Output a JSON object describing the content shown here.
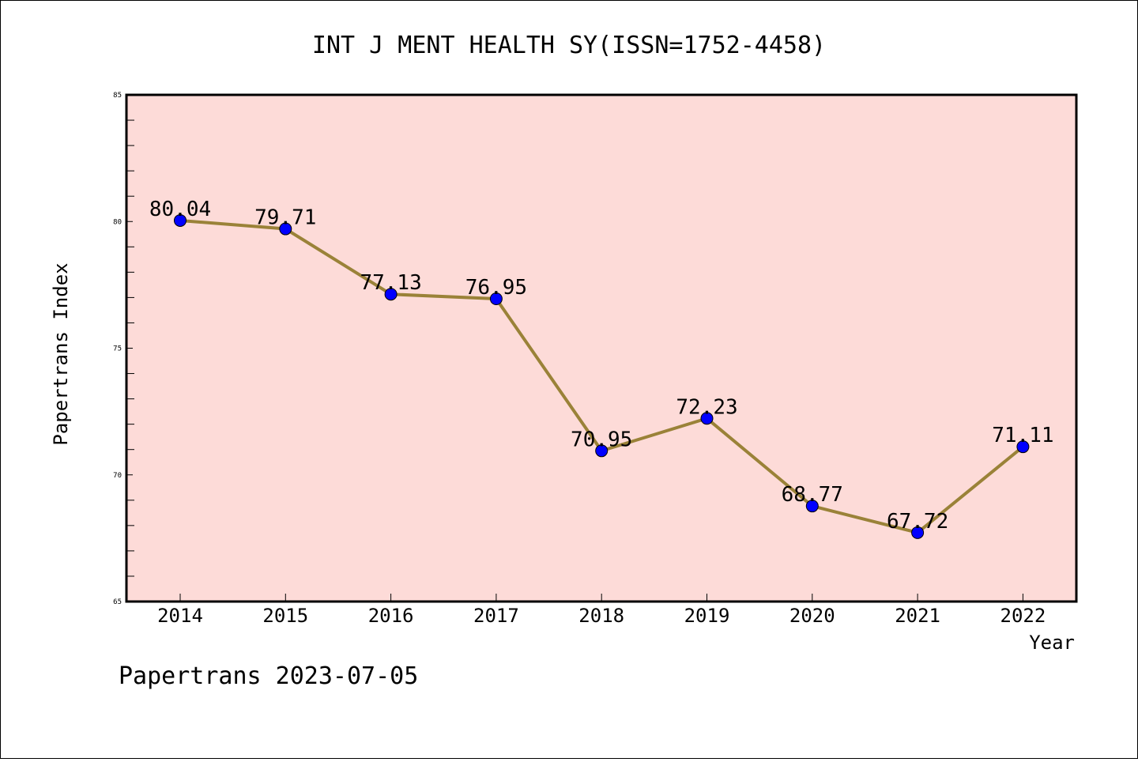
{
  "chart_data": {
    "type": "line",
    "title": "INT J MENT HEALTH SY(ISSN=1752-4458)",
    "xlabel": "Year",
    "ylabel": "Papertrans Index",
    "categories": [
      "2014",
      "2015",
      "2016",
      "2017",
      "2018",
      "2019",
      "2020",
      "2021",
      "2022"
    ],
    "series": [
      {
        "values": [
          80.04,
          79.71,
          77.13,
          76.95,
          70.95,
          72.23,
          68.77,
          67.72,
          71.11
        ],
        "labels": [
          "80.04",
          "79.71",
          "77.13",
          "76.95",
          "70.95",
          "72.23",
          "68.77",
          "67.72",
          "71.11"
        ]
      }
    ],
    "ylim": [
      65,
      85
    ],
    "yticks": [
      "65",
      "70",
      "75",
      "80",
      "85"
    ],
    "grid": false,
    "colors": {
      "plot_background": "#fddbd8",
      "line": "#9a8238",
      "marker": "#0000ff",
      "axes": "#000000"
    }
  },
  "footer": {
    "text": "Papertrans 2023-07-05"
  }
}
